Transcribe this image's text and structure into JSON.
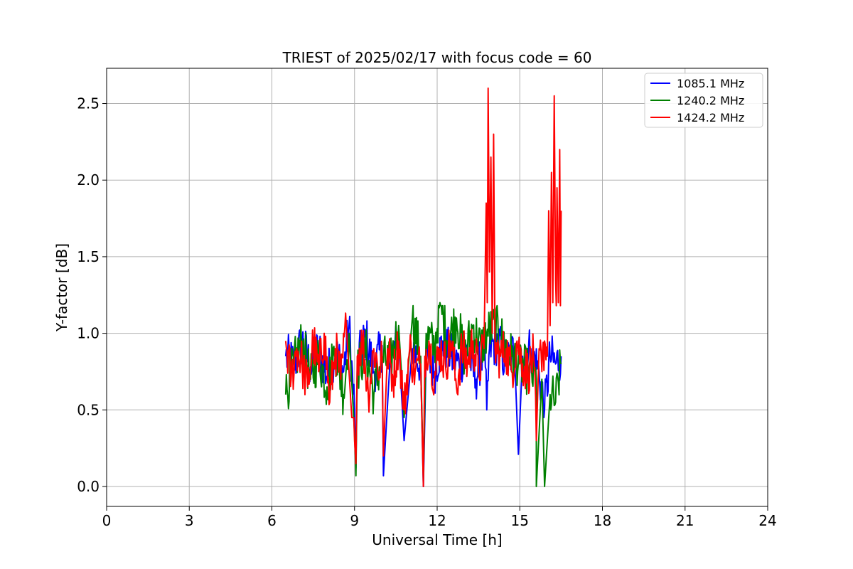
{
  "chart_data": {
    "type": "line",
    "title": "TRIEST of 2025/02/17 with focus code = 60",
    "xlabel": "Universal Time [h]",
    "ylabel": "Y-factor [dB]",
    "xlim": [
      0,
      24
    ],
    "ylim": [
      -0.13,
      2.73
    ],
    "xticks": [
      0,
      3,
      6,
      9,
      12,
      15,
      18,
      21,
      24
    ],
    "yticks": [
      0.0,
      0.5,
      1.0,
      1.5,
      2.0,
      2.5
    ],
    "xtick_labels": [
      "0",
      "3",
      "6",
      "9",
      "12",
      "15",
      "18",
      "21",
      "24"
    ],
    "ytick_labels": [
      "0.0",
      "0.5",
      "1.0",
      "1.5",
      "2.0",
      "2.5"
    ],
    "grid": true,
    "legend_position": "top-right",
    "series": [
      {
        "name": "1085.1 MHz",
        "color": "#0000ff",
        "x": [
          6.5,
          6.8,
          7.1,
          7.4,
          7.7,
          8.0,
          8.3,
          8.6,
          8.8,
          9.0,
          9.05,
          9.1,
          9.4,
          9.7,
          10.0,
          10.05,
          10.3,
          10.6,
          10.8,
          11.1,
          11.4,
          11.5,
          11.6,
          11.9,
          12.2,
          12.5,
          12.8,
          13.1,
          13.4,
          13.7,
          13.8,
          13.9,
          14.2,
          14.5,
          14.8,
          14.95,
          15.1,
          15.4,
          15.7,
          15.9,
          16.1,
          16.3,
          16.5
        ],
        "values": [
          0.85,
          0.8,
          0.95,
          0.78,
          0.9,
          0.72,
          0.88,
          0.75,
          1.05,
          0.5,
          0.12,
          0.8,
          0.98,
          0.75,
          0.92,
          0.07,
          0.85,
          0.95,
          0.3,
          0.9,
          0.8,
          0.0,
          0.85,
          0.75,
          0.95,
          0.85,
          0.8,
          0.9,
          0.7,
          0.92,
          0.5,
          0.9,
          0.95,
          0.8,
          0.9,
          0.21,
          0.85,
          0.9,
          0.75,
          0.5,
          0.85,
          0.8,
          0.85
        ]
      },
      {
        "name": "1240.2 MHz",
        "color": "#008000",
        "x": [
          6.5,
          6.8,
          7.1,
          7.4,
          7.7,
          8.0,
          8.3,
          8.6,
          8.8,
          9.0,
          9.05,
          9.1,
          9.4,
          9.7,
          10.0,
          10.3,
          10.6,
          10.8,
          11.1,
          11.4,
          11.5,
          11.6,
          11.9,
          12.1,
          12.4,
          12.7,
          13.0,
          13.3,
          13.6,
          13.8,
          14.1,
          14.4,
          14.7,
          15.0,
          15.3,
          15.6,
          15.6,
          15.8,
          15.9,
          16.1,
          16.3,
          16.5
        ],
        "values": [
          0.6,
          0.8,
          0.95,
          0.7,
          0.85,
          0.65,
          0.9,
          0.6,
          1.0,
          0.35,
          0.07,
          0.75,
          0.9,
          0.6,
          0.85,
          0.8,
          1.05,
          0.45,
          1.1,
          0.85,
          0.05,
          1.0,
          0.9,
          1.2,
          0.95,
          1.1,
          0.85,
          1.05,
          0.9,
          1.0,
          1.05,
          0.95,
          0.85,
          0.8,
          0.75,
          0.7,
          0.0,
          0.7,
          0.0,
          0.6,
          0.55,
          0.8
        ]
      },
      {
        "name": "1424.2 MHz",
        "color": "#ff0000",
        "x": [
          6.5,
          6.7,
          6.9,
          7.1,
          7.3,
          7.5,
          7.7,
          7.9,
          8.1,
          8.3,
          8.5,
          8.7,
          8.9,
          9.0,
          9.05,
          9.1,
          9.3,
          9.5,
          9.7,
          9.9,
          10.0,
          10.05,
          10.2,
          10.4,
          10.6,
          10.8,
          11.0,
          11.2,
          11.4,
          11.5,
          11.55,
          11.7,
          11.9,
          12.1,
          12.3,
          12.5,
          12.7,
          12.9,
          13.1,
          13.3,
          13.5,
          13.7,
          13.78,
          13.82,
          13.85,
          13.9,
          13.95,
          14.0,
          14.05,
          14.1,
          14.3,
          14.5,
          14.7,
          14.9,
          15.1,
          15.3,
          15.5,
          15.6,
          15.7,
          15.8,
          15.9,
          16.0,
          16.05,
          16.1,
          16.15,
          16.2,
          16.25,
          16.3,
          16.35,
          16.4,
          16.45,
          16.5
        ],
        "values": [
          0.95,
          0.7,
          0.9,
          0.8,
          0.65,
          0.95,
          0.75,
          1.0,
          0.55,
          0.9,
          0.7,
          1.05,
          0.45,
          0.3,
          0.15,
          0.85,
          0.95,
          0.6,
          0.9,
          0.75,
          0.85,
          0.2,
          0.9,
          0.7,
          0.95,
          0.5,
          0.9,
          0.75,
          0.8,
          0.0,
          0.85,
          0.95,
          0.7,
          0.9,
          0.8,
          0.95,
          0.65,
          0.9,
          0.8,
          0.95,
          0.75,
          0.9,
          1.85,
          1.2,
          2.6,
          1.4,
          2.15,
          1.0,
          2.3,
          0.9,
          0.85,
          0.9,
          0.75,
          0.95,
          0.8,
          0.75,
          0.85,
          0.3,
          0.9,
          0.75,
          0.95,
          0.85,
          1.8,
          1.05,
          2.05,
          1.2,
          2.55,
          1.35,
          1.95,
          1.2,
          2.2,
          1.8
        ]
      }
    ]
  }
}
